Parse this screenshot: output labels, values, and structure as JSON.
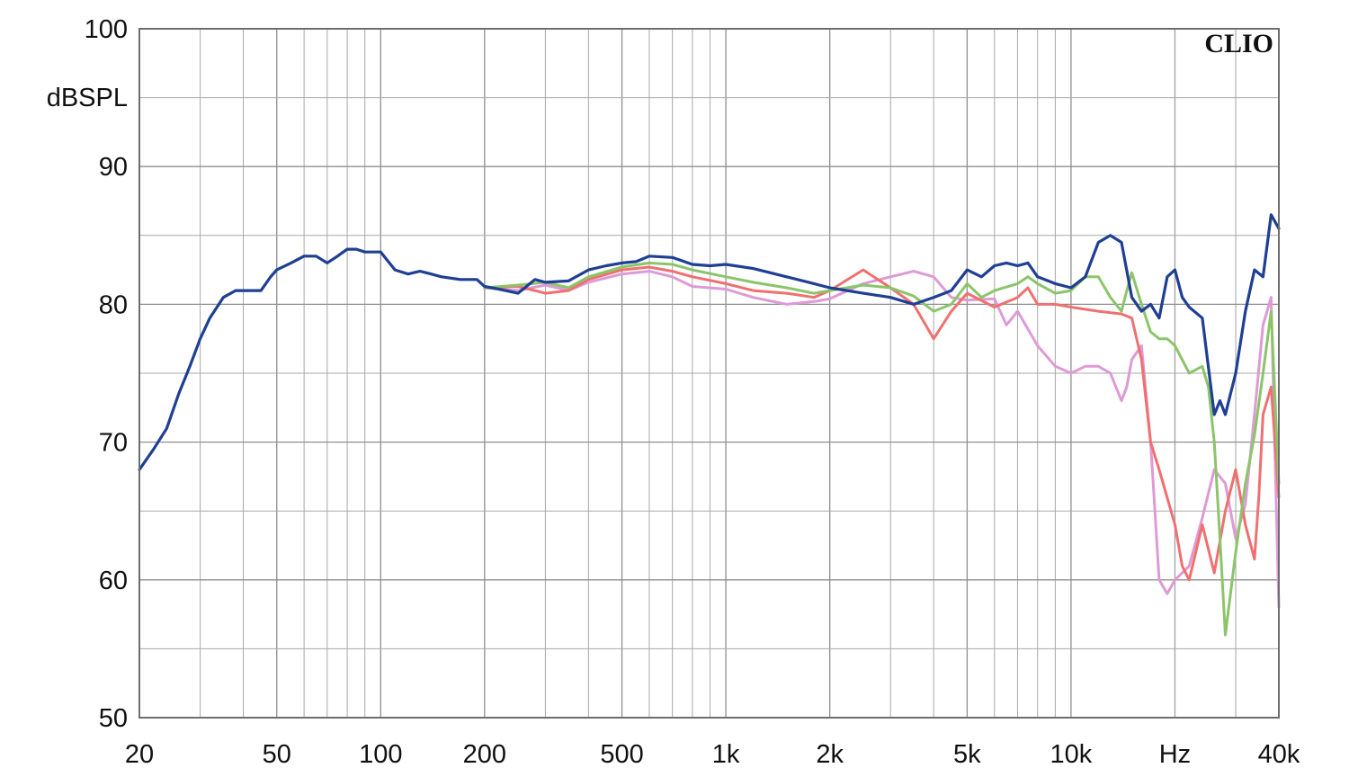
{
  "chart_data": {
    "type": "line",
    "title": "",
    "xlabel": "Hz",
    "ylabel": "dBSPL",
    "brand": "CLIO",
    "x_scale": "log",
    "xlim": [
      20,
      40000
    ],
    "ylim": [
      50,
      100
    ],
    "grid": true,
    "x_tick_labels": [
      "20",
      "50",
      "100",
      "200",
      "500",
      "1k",
      "2k",
      "5k",
      "10k",
      "Hz",
      "40k"
    ],
    "x_tick_values": [
      20,
      50,
      100,
      200,
      500,
      1000,
      2000,
      5000,
      10000,
      20000,
      40000
    ],
    "y_tick_values": [
      50,
      60,
      70,
      80,
      90,
      100
    ],
    "series": [
      {
        "color": "#de9ad6",
        "x": [
          200,
          250,
          300,
          350,
          400,
          500,
          600,
          700,
          800,
          1000,
          1200,
          1500,
          1800,
          2000,
          2500,
          3000,
          3500,
          4000,
          4500,
          5000,
          6000,
          6500,
          7000,
          8000,
          9000,
          10000,
          11000,
          12000,
          13000,
          14000,
          14500,
          15000,
          16000,
          17000,
          17500,
          18000,
          19000,
          20000,
          22000,
          24000,
          26000,
          28000,
          30000,
          32000,
          34000,
          36000,
          38000,
          40000
        ],
        "y": [
          81.2,
          81.0,
          81.4,
          81.0,
          81.6,
          82.2,
          82.4,
          82.0,
          81.3,
          81.1,
          80.5,
          80.0,
          80.2,
          80.4,
          81.5,
          82.0,
          82.4,
          82.0,
          80.5,
          80.3,
          80.4,
          78.5,
          79.5,
          77.0,
          75.5,
          75.0,
          75.5,
          75.5,
          75.0,
          73.0,
          74.0,
          76.0,
          77.0,
          70.0,
          65.0,
          60.0,
          59.0,
          60.0,
          61.0,
          64.5,
          68.0,
          67.0,
          63.0,
          65.5,
          72.0,
          78.5,
          80.5,
          58.0
        ]
      },
      {
        "color": "#f07070",
        "x": [
          200,
          250,
          300,
          350,
          400,
          500,
          600,
          700,
          800,
          1000,
          1200,
          1500,
          1800,
          2000,
          2500,
          3000,
          3500,
          4000,
          4500,
          5000,
          6000,
          7000,
          7500,
          8000,
          9000,
          10000,
          12000,
          14000,
          15000,
          16000,
          17000,
          18000,
          20000,
          21000,
          22000,
          24000,
          26000,
          28000,
          30000,
          32000,
          34000,
          35000,
          36000,
          38000,
          40000
        ],
        "y": [
          81.2,
          81.3,
          80.8,
          81.0,
          81.8,
          82.5,
          82.7,
          82.4,
          82.0,
          81.5,
          81.0,
          80.8,
          80.5,
          81.0,
          82.5,
          81.2,
          80.0,
          77.5,
          79.5,
          80.8,
          79.8,
          80.5,
          81.2,
          80.0,
          80.0,
          79.8,
          79.5,
          79.3,
          79.0,
          76.0,
          70.0,
          68.0,
          64.0,
          61.0,
          60.0,
          64.0,
          60.5,
          65.0,
          68.0,
          64.0,
          61.5,
          66.0,
          72.0,
          74.0,
          66.0
        ]
      },
      {
        "color": "#8bc56a",
        "x": [
          200,
          250,
          300,
          350,
          400,
          500,
          600,
          700,
          800,
          1000,
          1200,
          1500,
          1800,
          2000,
          2500,
          3000,
          3500,
          4000,
          4500,
          5000,
          5500,
          6000,
          7000,
          7500,
          8000,
          9000,
          10000,
          11000,
          12000,
          13000,
          14000,
          14500,
          15000,
          16000,
          17000,
          18000,
          19000,
          20000,
          22000,
          24000,
          25000,
          26000,
          27000,
          28000,
          30000,
          32000,
          34000,
          36000,
          38000,
          40000
        ],
        "y": [
          81.2,
          81.4,
          81.6,
          81.2,
          82.0,
          82.7,
          83.0,
          82.9,
          82.5,
          82.0,
          81.6,
          81.2,
          80.8,
          81.0,
          81.4,
          81.2,
          80.6,
          79.5,
          80.0,
          81.5,
          80.5,
          81.0,
          81.5,
          82.0,
          81.5,
          80.8,
          81.0,
          82.0,
          82.0,
          80.5,
          79.5,
          81.0,
          82.3,
          80.0,
          78.0,
          77.5,
          77.5,
          77.0,
          75.0,
          75.5,
          74.0,
          70.0,
          63.0,
          56.0,
          62.0,
          67.0,
          70.5,
          75.0,
          79.5,
          67.0
        ]
      },
      {
        "color": "#1f3f94",
        "x": [
          20,
          22,
          24,
          26,
          28,
          30,
          32,
          35,
          38,
          40,
          45,
          48,
          50,
          55,
          60,
          65,
          70,
          75,
          80,
          85,
          90,
          100,
          110,
          120,
          130,
          140,
          150,
          170,
          190,
          200,
          220,
          250,
          280,
          300,
          350,
          400,
          450,
          500,
          550,
          600,
          700,
          800,
          900,
          1000,
          1200,
          1500,
          1800,
          2000,
          2500,
          3000,
          3500,
          4000,
          4500,
          5000,
          5500,
          6000,
          6500,
          7000,
          7500,
          8000,
          9000,
          10000,
          11000,
          12000,
          13000,
          14000,
          15000,
          16000,
          17000,
          18000,
          19000,
          20000,
          21000,
          22000,
          24000,
          26000,
          27000,
          28000,
          30000,
          32000,
          34000,
          36000,
          38000,
          40000
        ],
        "y": [
          68.0,
          69.5,
          71.0,
          73.5,
          75.5,
          77.5,
          79.0,
          80.5,
          81.0,
          81.0,
          81.0,
          82.0,
          82.5,
          83.0,
          83.5,
          83.5,
          83.0,
          83.5,
          84.0,
          84.0,
          83.8,
          83.8,
          82.5,
          82.2,
          82.4,
          82.2,
          82.0,
          81.8,
          81.8,
          81.3,
          81.1,
          80.8,
          81.8,
          81.6,
          81.7,
          82.5,
          82.8,
          83.0,
          83.1,
          83.5,
          83.4,
          82.9,
          82.8,
          82.9,
          82.6,
          82.0,
          81.5,
          81.2,
          80.8,
          80.5,
          80.0,
          80.5,
          81.0,
          82.5,
          82.0,
          82.8,
          83.0,
          82.8,
          83.0,
          82.0,
          81.5,
          81.2,
          82.0,
          84.5,
          85.0,
          84.5,
          80.5,
          79.5,
          80.0,
          79.0,
          82.0,
          82.5,
          80.5,
          79.8,
          79.0,
          72.0,
          73.0,
          72.0,
          75.0,
          79.5,
          82.5,
          82.0,
          86.5,
          85.5
        ]
      }
    ]
  }
}
